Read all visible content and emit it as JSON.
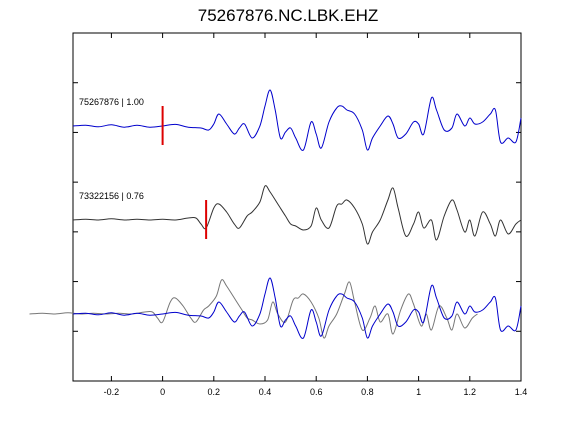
{
  "chart_data": {
    "type": "line",
    "title": "75267876.NC.LBK.EHZ",
    "xlabel": "",
    "ylabel": "",
    "xlim": [
      -0.35,
      1.4
    ],
    "x_ticks": [
      -0.2,
      0,
      0.2,
      0.4,
      0.6,
      0.8,
      1,
      1.2,
      1.4
    ],
    "x_tick_labels": [
      "-0.2",
      "0",
      "0.2",
      "0.4",
      "0.6",
      "0.8",
      "1",
      "1.2",
      "1.4"
    ],
    "grid": false,
    "traces": [
      {
        "label": "75267876 | 1.00",
        "color": "#0000cc",
        "pick_time": 0.0,
        "pick_color": "#dd0000",
        "x": [
          -0.35,
          -0.3,
          -0.25,
          -0.2,
          -0.15,
          -0.1,
          -0.05,
          0.0,
          0.05,
          0.1,
          0.15,
          0.18,
          0.2,
          0.22,
          0.25,
          0.28,
          0.3,
          0.32,
          0.35,
          0.38,
          0.4,
          0.42,
          0.44,
          0.46,
          0.48,
          0.5,
          0.52,
          0.55,
          0.58,
          0.6,
          0.62,
          0.65,
          0.68,
          0.7,
          0.72,
          0.75,
          0.78,
          0.8,
          0.82,
          0.85,
          0.88,
          0.9,
          0.92,
          0.95,
          0.98,
          1.0,
          1.02,
          1.05,
          1.07,
          1.1,
          1.13,
          1.15,
          1.18,
          1.2,
          1.22,
          1.25,
          1.28,
          1.3,
          1.32,
          1.35,
          1.38,
          1.4
        ],
        "y": [
          0.0,
          0.02,
          -0.02,
          0.03,
          -0.03,
          0.02,
          -0.03,
          0.0,
          0.04,
          -0.03,
          -0.05,
          -0.1,
          0.05,
          0.3,
          0.05,
          -0.2,
          -0.05,
          0.05,
          -0.3,
          0.0,
          0.5,
          0.9,
          0.4,
          -0.3,
          -0.15,
          -0.05,
          -0.3,
          -0.6,
          0.1,
          -0.2,
          -0.55,
          0.1,
          0.45,
          0.5,
          0.4,
          0.3,
          -0.1,
          -0.6,
          -0.3,
          0.0,
          0.25,
          0.05,
          -0.3,
          -0.2,
          0.1,
          0.05,
          -0.2,
          0.7,
          0.4,
          -0.1,
          -0.05,
          0.3,
          0.0,
          0.2,
          0.05,
          0.1,
          0.3,
          0.4,
          -0.4,
          -0.3,
          -0.4,
          0.2
        ]
      },
      {
        "label": "73322156 | 0.76",
        "color": "#333333",
        "pick_time": 0.17,
        "pick_color": "#dd0000",
        "x": [
          -0.35,
          -0.3,
          -0.25,
          -0.2,
          -0.15,
          -0.1,
          -0.05,
          0.0,
          0.05,
          0.1,
          0.13,
          0.15,
          0.17,
          0.2,
          0.22,
          0.25,
          0.28,
          0.3,
          0.33,
          0.35,
          0.38,
          0.4,
          0.42,
          0.45,
          0.48,
          0.5,
          0.52,
          0.55,
          0.58,
          0.6,
          0.62,
          0.65,
          0.68,
          0.7,
          0.72,
          0.75,
          0.78,
          0.8,
          0.82,
          0.85,
          0.88,
          0.9,
          0.92,
          0.95,
          0.98,
          1.0,
          1.02,
          1.05,
          1.07,
          1.1,
          1.13,
          1.15,
          1.18,
          1.2,
          1.22,
          1.25,
          1.28,
          1.3,
          1.32,
          1.35,
          1.38,
          1.4
        ],
        "y": [
          0.0,
          0.02,
          0.0,
          0.03,
          0.0,
          0.02,
          0.0,
          0.02,
          0.0,
          0.05,
          0.05,
          -0.1,
          -0.2,
          0.3,
          0.4,
          0.2,
          -0.1,
          -0.2,
          0.1,
          0.2,
          0.45,
          0.85,
          0.7,
          0.4,
          0.1,
          -0.1,
          -0.15,
          -0.25,
          -0.15,
          0.3,
          0.0,
          -0.2,
          0.35,
          0.4,
          0.5,
          0.3,
          -0.1,
          -0.6,
          -0.3,
          0.0,
          0.5,
          0.8,
          0.3,
          -0.4,
          -0.1,
          0.2,
          -0.2,
          0.0,
          -0.5,
          0.1,
          0.5,
          0.25,
          -0.3,
          0.0,
          -0.4,
          0.2,
          -0.1,
          -0.4,
          0.0,
          -0.35,
          -0.1,
          0.0
        ]
      }
    ],
    "overlay": {
      "label": "",
      "series_refs": [
        "75267876 | 1.00",
        "73322156 | 0.76"
      ],
      "colors": [
        "#0000cc",
        "#777777"
      ]
    }
  }
}
